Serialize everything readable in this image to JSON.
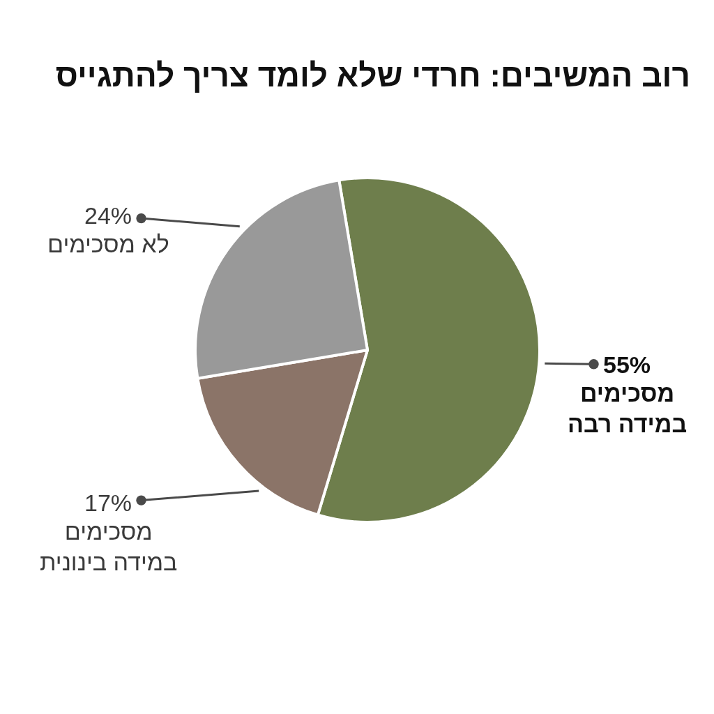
{
  "chart_data": {
    "type": "pie",
    "title": "רוב המשיבים: חרדי שלא לומד צריך להתגייס",
    "categories": [
      "מסכימים\nבמידה רבה",
      "מסכימים\nבמידה בינונית",
      "לא מסכימים"
    ],
    "values": [
      55,
      17,
      24
    ],
    "colors": [
      "#6e7e4c",
      "#8b7468",
      "#999999"
    ],
    "value_labels": [
      "55%",
      "17%",
      "24%"
    ],
    "legend": false
  }
}
